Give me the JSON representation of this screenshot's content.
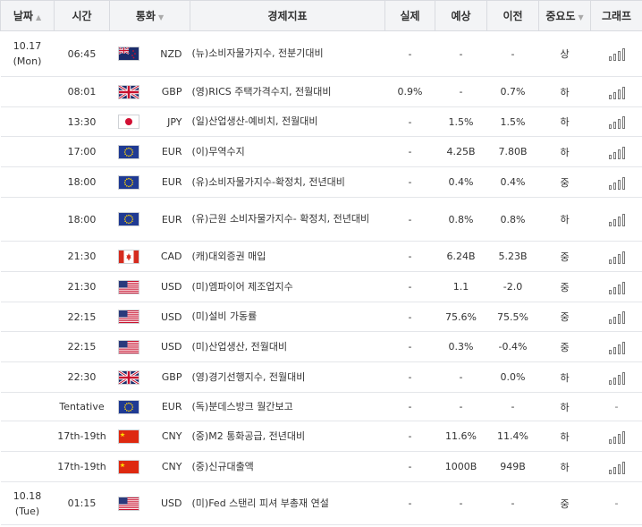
{
  "headers": {
    "date": "날짜",
    "time": "시간",
    "currency": "통화",
    "indicator": "경제지표",
    "actual": "실제",
    "forecast": "예상",
    "previous": "이전",
    "importance": "중요도",
    "graph": "그래프"
  },
  "rows": [
    {
      "date_line1": "10.17",
      "date_line2": "(Mon)",
      "time": "06:45",
      "flag": "nz",
      "currency": "NZD",
      "indicator": "(뉴)소비자물가지수, 전분기대비",
      "actual": "-",
      "forecast": "-",
      "previous": "-",
      "importance": "상",
      "graph": "bar-chart-icon"
    },
    {
      "date_line1": "",
      "date_line2": "",
      "time": "08:01",
      "flag": "uk",
      "currency": "GBP",
      "indicator": "(영)RICS 주택가격수지, 전월대비",
      "actual": "0.9%",
      "forecast": "-",
      "previous": "0.7%",
      "importance": "하",
      "graph": "bar-chart-icon"
    },
    {
      "date_line1": "",
      "date_line2": "",
      "time": "13:30",
      "flag": "jp",
      "currency": "JPY",
      "indicator": "(일)산업생산-예비치, 전월대비",
      "actual": "-",
      "forecast": "1.5%",
      "previous": "1.5%",
      "importance": "하",
      "graph": "bar-chart-icon"
    },
    {
      "date_line1": "",
      "date_line2": "",
      "time": "17:00",
      "flag": "eu",
      "currency": "EUR",
      "indicator": "(이)무역수지",
      "actual": "-",
      "forecast": "4.25B",
      "previous": "7.80B",
      "importance": "하",
      "graph": "bar-chart-icon"
    },
    {
      "date_line1": "",
      "date_line2": "",
      "time": "18:00",
      "flag": "eu",
      "currency": "EUR",
      "indicator": "(유)소비자물가지수-확정치, 전년대비",
      "actual": "-",
      "forecast": "0.4%",
      "previous": "0.4%",
      "importance": "중",
      "graph": "bar-chart-icon"
    },
    {
      "date_line1": "",
      "date_line2": "",
      "time": "18:00",
      "flag": "eu",
      "currency": "EUR",
      "indicator": "(유)근원 소비자물가지수- 확정치, 전년대비",
      "actual": "-",
      "forecast": "0.8%",
      "previous": "0.8%",
      "importance": "하",
      "graph": "bar-chart-icon"
    },
    {
      "date_line1": "",
      "date_line2": "",
      "time": "21:30",
      "flag": "ca",
      "currency": "CAD",
      "indicator": "(캐)대외증권 매입",
      "actual": "-",
      "forecast": "6.24B",
      "previous": "5.23B",
      "importance": "중",
      "graph": "bar-chart-icon"
    },
    {
      "date_line1": "",
      "date_line2": "",
      "time": "21:30",
      "flag": "us",
      "currency": "USD",
      "indicator": "(미)엠파이어 제조업지수",
      "actual": "-",
      "forecast": "1.1",
      "previous": "-2.0",
      "importance": "중",
      "graph": "bar-chart-icon"
    },
    {
      "date_line1": "",
      "date_line2": "",
      "time": "22:15",
      "flag": "us",
      "currency": "USD",
      "indicator": "(미)설비 가동률",
      "actual": "-",
      "forecast": "75.6%",
      "previous": "75.5%",
      "importance": "중",
      "graph": "bar-chart-icon"
    },
    {
      "date_line1": "",
      "date_line2": "",
      "time": "22:15",
      "flag": "us",
      "currency": "USD",
      "indicator": "(미)산업생산, 전월대비",
      "actual": "-",
      "forecast": "0.3%",
      "previous": "-0.4%",
      "importance": "중",
      "graph": "bar-chart-icon"
    },
    {
      "date_line1": "",
      "date_line2": "",
      "time": "22:30",
      "flag": "uk",
      "currency": "GBP",
      "indicator": "(영)경기선행지수, 전월대비",
      "actual": "-",
      "forecast": "-",
      "previous": "0.0%",
      "importance": "하",
      "graph": "bar-chart-icon"
    },
    {
      "date_line1": "",
      "date_line2": "",
      "time": "Tentative",
      "flag": "eu",
      "currency": "EUR",
      "indicator": "(독)분데스방크 월간보고",
      "actual": "-",
      "forecast": "-",
      "previous": "-",
      "importance": "하",
      "graph": "-"
    },
    {
      "date_line1": "",
      "date_line2": "",
      "time": "17th-19th",
      "flag": "cn",
      "currency": "CNY",
      "indicator": "(중)M2 통화공급, 전년대비",
      "actual": "-",
      "forecast": "11.6%",
      "previous": "11.4%",
      "importance": "하",
      "graph": "bar-chart-icon"
    },
    {
      "date_line1": "",
      "date_line2": "",
      "time": "17th-19th",
      "flag": "cn",
      "currency": "CNY",
      "indicator": "(중)신규대출액",
      "actual": "-",
      "forecast": "1000B",
      "previous": "949B",
      "importance": "하",
      "graph": "bar-chart-icon"
    },
    {
      "date_line1": "10.18",
      "date_line2": "(Tue)",
      "time": "01:15",
      "flag": "us",
      "currency": "USD",
      "indicator": "(미)Fed 스탠리 피셔 부총재 연설",
      "actual": "-",
      "forecast": "-",
      "previous": "-",
      "importance": "중",
      "graph": "-"
    }
  ],
  "colors": {
    "header_bg": "#f3f4f6",
    "border": "#e4e6ea"
  }
}
